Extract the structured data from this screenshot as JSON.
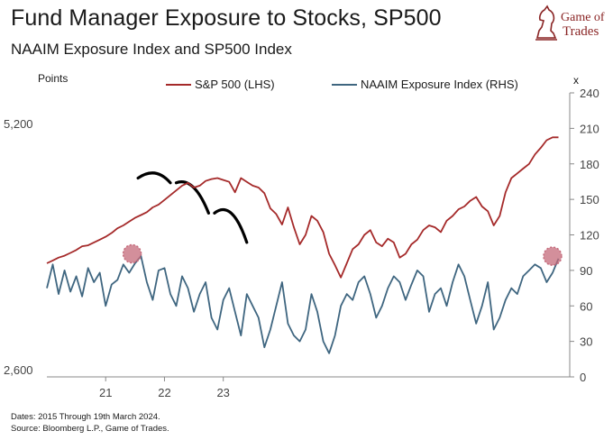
{
  "header": {
    "title": "Fund Manager Exposure to Stocks, SP500",
    "subtitle": "NAAIM Exposure Index and SP500 Index",
    "logo_line1": "Game of",
    "logo_line2": "Trades"
  },
  "footer": {
    "dates": "Dates: 2015 Through 19th March 2024.",
    "source": "Source: Bloomberg L.P., Game of Trades."
  },
  "chart_data": {
    "type": "line",
    "title": "Fund Manager Exposure to Stocks, SP500",
    "subtitle": "NAAIM Exposure Index and SP500 Index",
    "x_tick_labels": [
      "21",
      "22",
      "23"
    ],
    "left_axis": {
      "label": "Points",
      "ticks": [
        "5,200",
        "2,600"
      ],
      "range": [
        2600,
        5600
      ]
    },
    "right_axis": {
      "label": "x",
      "ticks": [
        0,
        30,
        60,
        90,
        120,
        150,
        180,
        210,
        240
      ],
      "range": [
        0,
        240
      ]
    },
    "colors": {
      "sp500": "#a52a2a",
      "naaim": "#3f6680",
      "highlight": "#c4697a",
      "annotation": "#000000"
    },
    "series": [
      {
        "name": "S&P 500 (LHS)",
        "axis": "left",
        "x": [
          20.0,
          20.1,
          20.2,
          20.3,
          20.4,
          20.5,
          20.6,
          20.7,
          20.8,
          20.9,
          21.0,
          21.1,
          21.2,
          21.3,
          21.4,
          21.5,
          21.6,
          21.7,
          21.8,
          21.9,
          22.0,
          22.1,
          22.2,
          22.3,
          22.4,
          22.5,
          22.6,
          22.7,
          22.8,
          22.9,
          23.0,
          23.1,
          23.2,
          23.3,
          23.4,
          23.5,
          23.6,
          23.7,
          23.8,
          23.9,
          24.0,
          24.1,
          24.2,
          24.3,
          24.4,
          24.5,
          24.6,
          24.7,
          24.8,
          24.9,
          25.0,
          25.1,
          25.2,
          25.3,
          25.4,
          25.5,
          25.6,
          25.7,
          25.8,
          25.9,
          26.0,
          26.1,
          26.2,
          26.3,
          26.4,
          26.5,
          26.6,
          26.7,
          26.8,
          26.9,
          27.0,
          27.1,
          27.2,
          27.3,
          27.4,
          27.5,
          27.6,
          27.7,
          27.8,
          27.9,
          28.0,
          28.1,
          28.2,
          28.3,
          28.4,
          28.5,
          28.6,
          28.7
        ],
        "values": [
          3800,
          3830,
          3860,
          3880,
          3910,
          3940,
          3980,
          3990,
          4020,
          4050,
          4080,
          4120,
          4170,
          4200,
          4240,
          4280,
          4310,
          4340,
          4390,
          4420,
          4470,
          4520,
          4570,
          4620,
          4650,
          4600,
          4620,
          4670,
          4690,
          4700,
          4680,
          4660,
          4550,
          4700,
          4660,
          4620,
          4600,
          4540,
          4380,
          4320,
          4210,
          4390,
          4180,
          4000,
          4100,
          4300,
          4250,
          4130,
          3900,
          3780,
          3650,
          3800,
          3950,
          4000,
          4100,
          4150,
          4020,
          3980,
          4060,
          4020,
          3860,
          3900,
          4000,
          4050,
          4150,
          4200,
          4180,
          4130,
          4250,
          4300,
          4370,
          4400,
          4460,
          4500,
          4400,
          4350,
          4200,
          4300,
          4550,
          4700,
          4750,
          4800,
          4850,
          4950,
          5020,
          5100,
          5130,
          5130
        ]
      },
      {
        "name": "NAAIM Exposure Index (RHS)",
        "axis": "right",
        "x": [
          20.0,
          20.1,
          20.2,
          20.3,
          20.4,
          20.5,
          20.6,
          20.7,
          20.8,
          20.9,
          21.0,
          21.1,
          21.2,
          21.3,
          21.4,
          21.5,
          21.6,
          21.7,
          21.8,
          21.9,
          22.0,
          22.1,
          22.2,
          22.3,
          22.4,
          22.5,
          22.6,
          22.7,
          22.8,
          22.9,
          23.0,
          23.1,
          23.2,
          23.3,
          23.4,
          23.5,
          23.6,
          23.7,
          23.8,
          23.9,
          24.0,
          24.1,
          24.2,
          24.3,
          24.4,
          24.5,
          24.6,
          24.7,
          24.8,
          24.9,
          25.0,
          25.1,
          25.2,
          25.3,
          25.4,
          25.5,
          25.6,
          25.7,
          25.8,
          25.9,
          26.0,
          26.1,
          26.2,
          26.3,
          26.4,
          26.5,
          26.6,
          26.7,
          26.8,
          26.9,
          27.0,
          27.1,
          27.2,
          27.3,
          27.4,
          27.5,
          27.6,
          27.7,
          27.8,
          27.9,
          28.0,
          28.1,
          28.2,
          28.3,
          28.4,
          28.5,
          28.6,
          28.7
        ],
        "values": [
          75,
          95,
          70,
          90,
          72,
          85,
          68,
          92,
          80,
          88,
          60,
          78,
          82,
          95,
          88,
          96,
          102,
          80,
          65,
          90,
          92,
          70,
          60,
          85,
          75,
          55,
          70,
          80,
          50,
          40,
          65,
          75,
          55,
          35,
          70,
          60,
          50,
          25,
          40,
          60,
          80,
          45,
          35,
          30,
          40,
          70,
          55,
          30,
          20,
          35,
          60,
          70,
          65,
          80,
          85,
          70,
          50,
          60,
          75,
          85,
          80,
          65,
          78,
          90,
          85,
          55,
          70,
          75,
          60,
          80,
          95,
          85,
          65,
          45,
          60,
          80,
          40,
          50,
          65,
          75,
          70,
          85,
          90,
          95,
          92,
          80,
          88,
          100
        ]
      }
    ],
    "highlights": [
      {
        "series": "NAAIM Exposure Index (RHS)",
        "x": 21.45,
        "value": 104
      },
      {
        "series": "NAAIM Exposure Index (RHS)",
        "x": 28.6,
        "value": 102
      }
    ]
  }
}
